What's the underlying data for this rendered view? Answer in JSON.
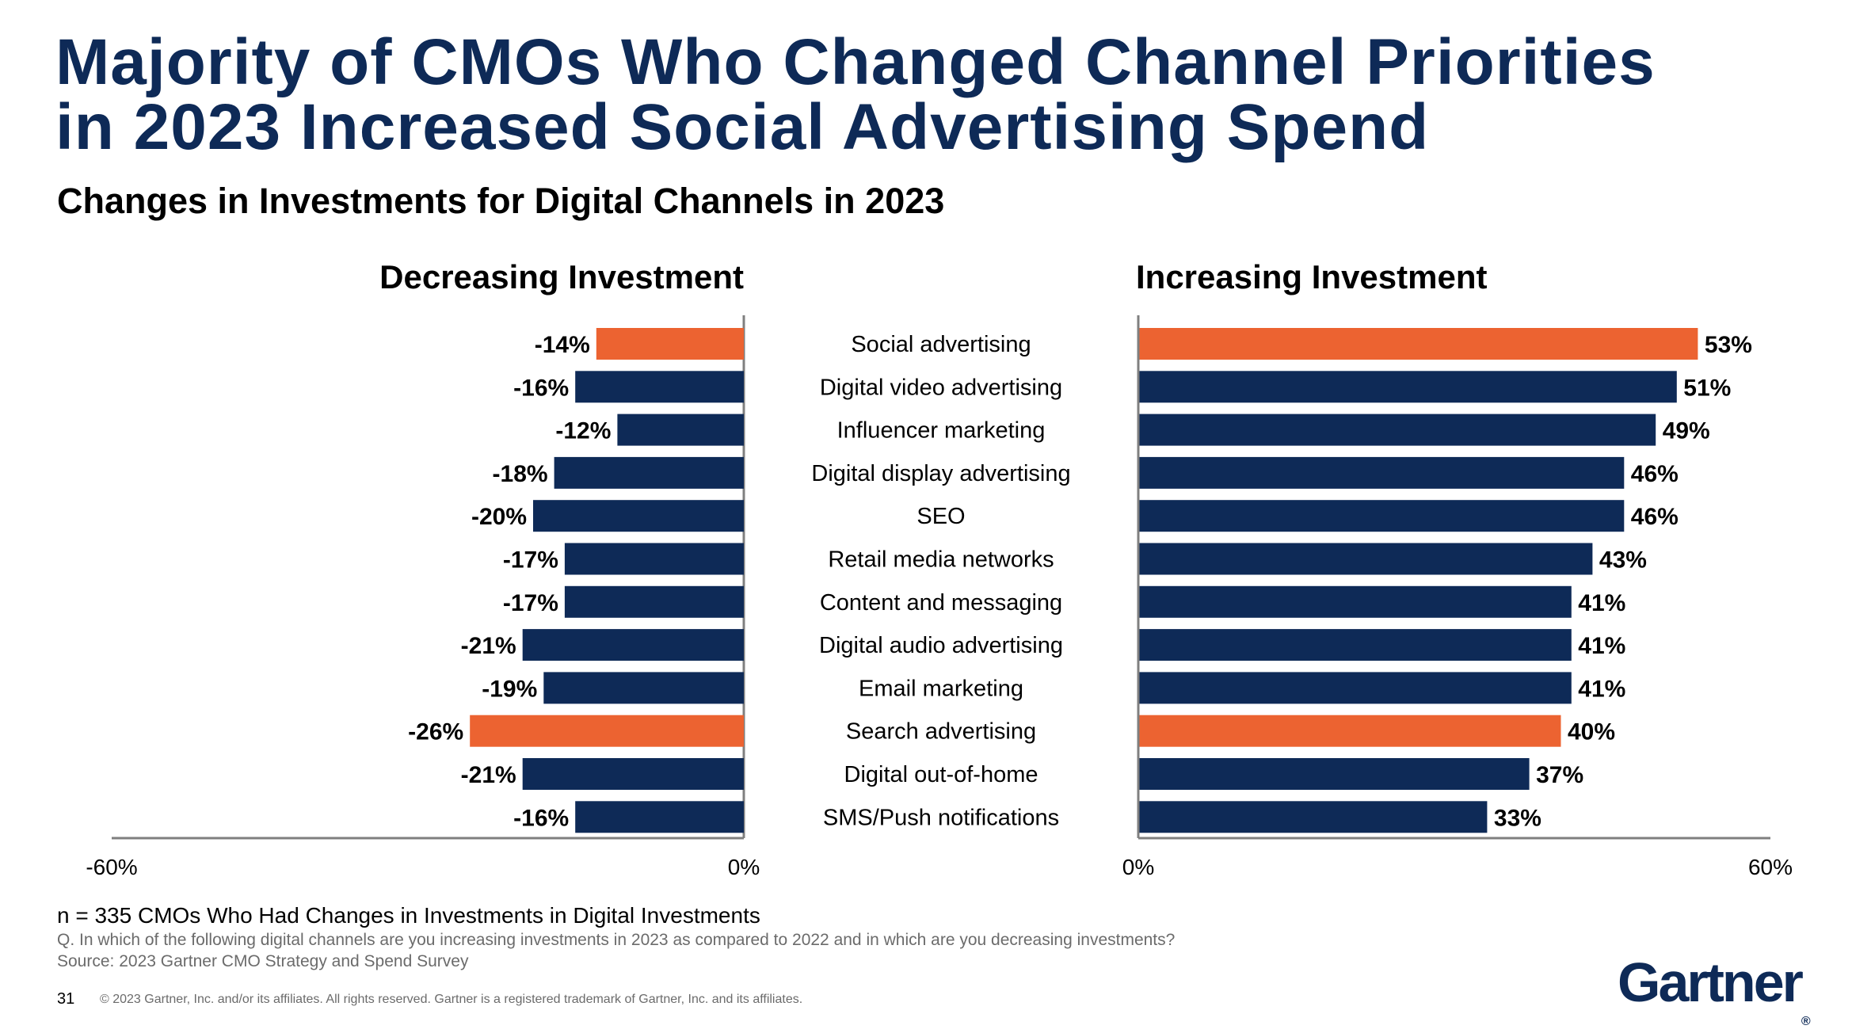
{
  "title_line1": "Majority of CMOs Who Changed Channel Priorities",
  "title_line2": "in 2023 Increased Social Advertising Spend",
  "colors": {
    "navy": "#0e2a57",
    "orange": "#ec6331",
    "axis": "#7f7f7f"
  },
  "chart_data": {
    "type": "bar",
    "title": "Changes in Investments for Digital Channels in 2023",
    "orientation": "horizontal-diverging",
    "categories": [
      "Social advertising",
      "Digital video advertising",
      "Influencer marketing",
      "Digital display advertising",
      "SEO",
      "Retail media networks",
      "Content and messaging",
      "Digital audio advertising",
      "Email marketing",
      "Search advertising",
      "Digital out-of-home",
      "SMS/Push notifications"
    ],
    "highlighted": [
      "Social advertising",
      "Search advertising"
    ],
    "panels": [
      {
        "name": "Decreasing Investment",
        "values": [
          -14,
          -16,
          -12,
          -18,
          -20,
          -17,
          -17,
          -21,
          -19,
          -26,
          -21,
          -16
        ],
        "labels": [
          "-14%",
          "-16%",
          "-12%",
          "-18%",
          "-20%",
          "-17%",
          "-17%",
          "-21%",
          "-19%",
          "-26%",
          "-21%",
          "-16%"
        ],
        "xlim": [
          -60,
          0
        ],
        "ticks": [
          "-60%",
          "0%"
        ]
      },
      {
        "name": "Increasing Investment",
        "values": [
          53,
          51,
          49,
          46,
          46,
          43,
          41,
          41,
          41,
          40,
          37,
          33
        ],
        "labels": [
          "53%",
          "51%",
          "49%",
          "46%",
          "46%",
          "43%",
          "41%",
          "41%",
          "41%",
          "40%",
          "37%",
          "33%"
        ],
        "xlim": [
          0,
          60
        ],
        "ticks": [
          "0%",
          "60%"
        ]
      }
    ],
    "grid": false,
    "legend": "none"
  },
  "footer": {
    "sample": "n = 335 CMOs Who Had Changes in Investments in Digital Investments",
    "question": "Q. In which of the following digital channels are you increasing investments in 2023 as compared to 2022 and in which are you decreasing investments?",
    "source": "Source: 2023 Gartner CMO Strategy and Spend Survey",
    "page": "31",
    "copyright": "© 2023 Gartner, Inc. and/or its affiliates. All rights reserved. Gartner is a registered trademark of Gartner, Inc. and its affiliates.",
    "logo": "Gartner"
  }
}
